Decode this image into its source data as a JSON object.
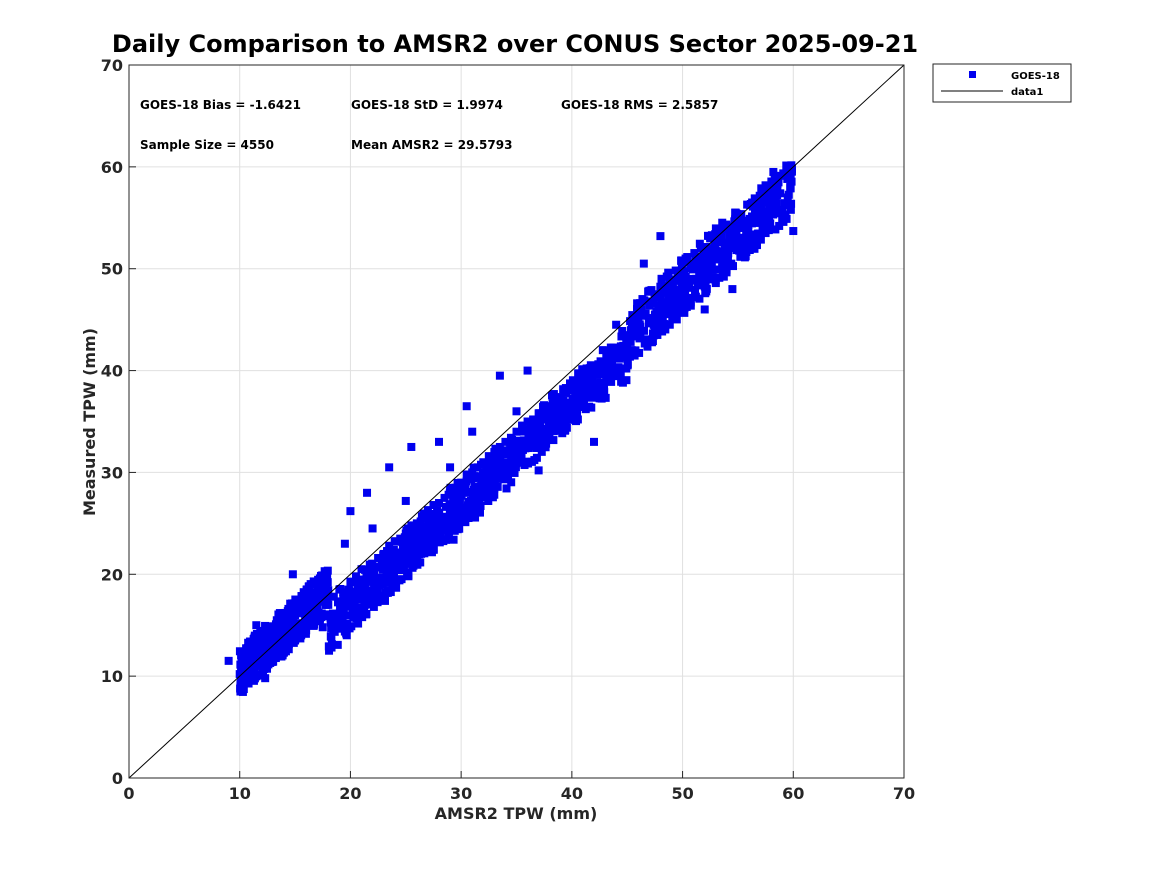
{
  "chart_data": {
    "type": "scatter",
    "title": "Daily Comparison to AMSR2 over CONUS Sector 2025-09-21",
    "xlabel": "AMSR2 TPW (mm)",
    "ylabel": "Measured TPW (mm)",
    "xlim": [
      0,
      70
    ],
    "ylim": [
      0,
      70
    ],
    "xticks": [
      "0",
      "10",
      "20",
      "30",
      "40",
      "50",
      "60",
      "70"
    ],
    "yticks": [
      "0",
      "10",
      "20",
      "30",
      "40",
      "50",
      "60",
      "70"
    ],
    "grid": true,
    "legend_position": "top-right, outside axes",
    "stats": [
      "GOES-18 Bias = -1.6421",
      "GOES-18 StD = 1.9974",
      "GOES-18 RMS = 2.5857",
      "Sample Size = 4550",
      "Mean AMSR2 = 29.5793"
    ],
    "series": [
      {
        "name": "GOES-18",
        "marker": "square",
        "color": "#0000ee",
        "x": [
          9.0,
          10.0,
          10.3,
          10.6,
          11.0,
          11.2,
          11.5,
          12.0,
          12.3,
          12.0,
          13.0,
          13.5,
          14.0,
          14.5,
          15.0,
          15.0,
          15.5,
          16.0,
          16.5,
          17.0,
          17.5,
          18.0,
          18.5,
          19.0,
          19.5,
          20.0,
          20.5,
          21.0,
          21.5,
          22.0,
          22.5,
          23.0,
          23.5,
          24.0,
          24.5,
          25.0,
          25.5,
          26.0,
          26.5,
          27.0,
          27.5,
          28.0,
          28.5,
          29.0,
          29.5,
          30.0,
          30.5,
          31.0,
          31.5,
          32.0,
          32.5,
          33.0,
          33.5,
          34.0,
          34.5,
          35.0,
          35.5,
          36.0,
          36.5,
          37.0,
          37.5,
          38.0,
          38.5,
          39.0,
          39.5,
          40.0,
          40.5,
          41.0,
          41.5,
          42.0,
          42.5,
          43.0,
          43.5,
          44.0,
          44.5,
          45.0,
          46.0,
          47.0,
          47.5,
          48.0,
          48.5,
          49.0,
          49.5,
          50.0,
          50.5,
          51.0,
          51.5,
          52.0,
          53.0,
          53.5,
          54.0,
          55.0,
          55.5,
          56.0,
          56.5,
          57.0,
          57.5,
          58.0,
          58.5,
          59.0,
          59.5,
          60.0,
          14.8,
          12.5,
          17.5,
          20.0,
          21.5,
          23.5,
          25.0,
          25.5,
          28.0,
          30.5,
          32.5,
          34.0,
          35.0,
          37.0,
          39.0,
          41.0,
          42.0,
          43.0,
          44.0,
          46.5,
          48.0,
          49.5,
          52.0,
          38.5,
          36.0,
          31.0,
          29.0,
          27.0,
          24.0,
          22.0,
          19.5,
          16.0,
          13.5,
          10.5,
          11.8,
          25.5,
          33.5,
          42.5,
          45.5,
          47.0,
          54.5,
          57.5,
          58.2
        ],
        "y": [
          11.5,
          10.2,
          10.8,
          9.5,
          12.2,
          10.5,
          15.0,
          12.3,
          9.8,
          11.0,
          13.2,
          12.4,
          14.2,
          14.8,
          13.5,
          16.0,
          15.2,
          14.5,
          17.5,
          16.0,
          18.2,
          17.0,
          17.8,
          18.5,
          18.0,
          19.2,
          19.8,
          20.5,
          20.3,
          21.0,
          21.6,
          22.0,
          22.8,
          23.2,
          23.5,
          24.0,
          24.8,
          25.0,
          25.5,
          26.3,
          26.8,
          27.0,
          27.5,
          28.2,
          28.5,
          29.0,
          29.8,
          30.0,
          30.5,
          31.0,
          31.6,
          32.0,
          32.5,
          33.0,
          33.4,
          34.0,
          34.6,
          35.0,
          35.2,
          35.8,
          36.2,
          36.5,
          37.0,
          37.4,
          37.8,
          38.2,
          38.6,
          39.0,
          39.4,
          39.8,
          40.2,
          40.6,
          41.0,
          41.5,
          42.0,
          42.5,
          44.0,
          44.8,
          45.5,
          46.0,
          46.5,
          47.0,
          47.5,
          48.5,
          48.8,
          49.0,
          49.6,
          50.0,
          51.0,
          51.5,
          52.5,
          53.0,
          54.0,
          54.5,
          55.0,
          55.5,
          56.5,
          56.0,
          57.5,
          55.5,
          57.0,
          53.7,
          20.0,
          11.2,
          14.8,
          26.2,
          28.0,
          30.5,
          27.2,
          32.5,
          33.0,
          36.5,
          29.5,
          31.8,
          36.0,
          30.2,
          34.2,
          36.5,
          33.0,
          40.5,
          44.5,
          50.5,
          53.2,
          47.0,
          46.0,
          35.5,
          40.0,
          34.0,
          30.5,
          23.5,
          21.5,
          24.5,
          23.0,
          17.0,
          14.3,
          11.0,
          13.8,
          23.0,
          39.5,
          38.5,
          45.0,
          43.0,
          48.0,
          53.5,
          59.5
        ]
      },
      {
        "name": "data1",
        "type": "line",
        "color": "#000000",
        "x": [
          0,
          70
        ],
        "y": [
          0,
          70
        ]
      }
    ]
  }
}
